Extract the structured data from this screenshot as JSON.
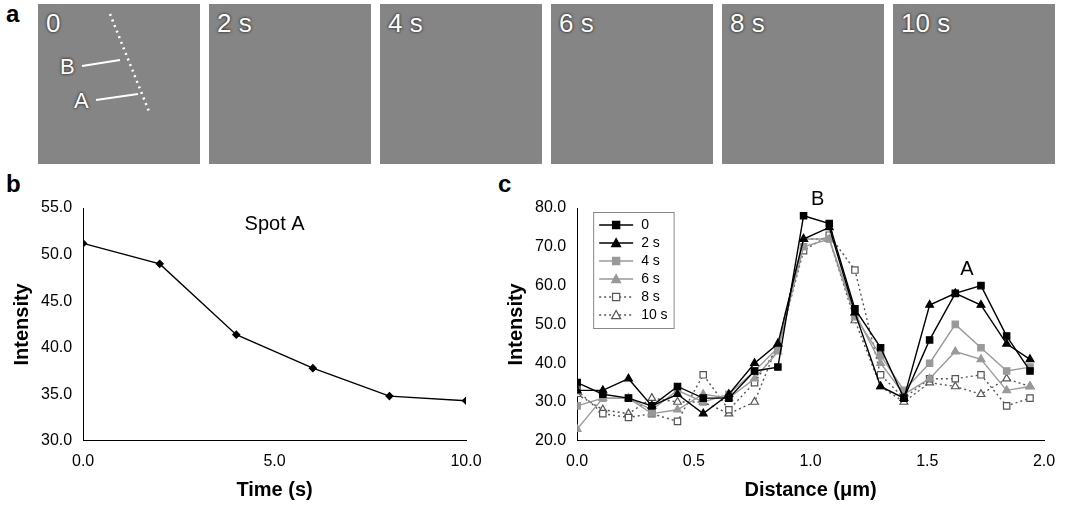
{
  "panel_a": {
    "panel_label": "a",
    "frames": [
      "0",
      "2 s",
      "4 s",
      "6 s",
      "8 s",
      "10 s"
    ],
    "spot_labels": [
      "B",
      "A"
    ]
  },
  "chart_data": [
    {
      "panel_label": "b",
      "type": "line",
      "title": "Spot A",
      "x_label": "Time (s)",
      "y_label": "Intensity",
      "x": [
        0,
        2,
        4,
        6,
        8,
        10
      ],
      "values": [
        51.2,
        49.0,
        41.4,
        37.8,
        34.8,
        34.3
      ],
      "color": "#000000",
      "marker": "diamond",
      "line_style": "solid",
      "xlim": [
        0,
        10
      ],
      "xticks": [
        {
          "value": 0,
          "label": "0.0"
        },
        {
          "value": 5,
          "label": "5.0"
        },
        {
          "value": 10,
          "label": "10.0"
        }
      ],
      "ylim": [
        30,
        55
      ],
      "yticks": [
        {
          "value": 30,
          "label": "30.0"
        },
        {
          "value": 35,
          "label": "35.0"
        },
        {
          "value": 40,
          "label": "40.0"
        },
        {
          "value": 45,
          "label": "45.0"
        },
        {
          "value": 50,
          "label": "50.0"
        },
        {
          "value": 55,
          "label": "55.0"
        }
      ],
      "grid": false
    },
    {
      "panel_label": "c",
      "type": "line",
      "x_label": "Distance (μm)",
      "y_label": "Intensity",
      "x": [
        0,
        0.11,
        0.22,
        0.32,
        0.43,
        0.54,
        0.65,
        0.76,
        0.86,
        0.97,
        1.08,
        1.19,
        1.3,
        1.4,
        1.51,
        1.62,
        1.73,
        1.84,
        1.94
      ],
      "series": [
        {
          "name": "0",
          "color": "#000000",
          "marker": "square",
          "line_style": "solid",
          "values": [
            35,
            32,
            31,
            29,
            34,
            31,
            31,
            38,
            39,
            78,
            76,
            54,
            44,
            31,
            46,
            58,
            60,
            47,
            38
          ]
        },
        {
          "name": "2 s",
          "color": "#000000",
          "marker": "triangle",
          "line_style": "solid",
          "values": [
            33,
            33,
            36,
            29,
            32,
            27,
            32,
            40,
            45,
            72,
            75,
            53,
            34,
            31,
            55,
            58,
            55,
            45,
            41
          ]
        },
        {
          "name": "4 s",
          "color": "#999999",
          "marker": "square",
          "line_style": "solid",
          "values": [
            29,
            31,
            31,
            28,
            33,
            30,
            32,
            38,
            44,
            70,
            72,
            52,
            42,
            33,
            40,
            50,
            44,
            38,
            39
          ]
        },
        {
          "name": "6 s",
          "color": "#999999",
          "marker": "triangle",
          "line_style": "solid",
          "values": [
            23,
            31,
            31,
            27,
            28,
            32,
            31,
            36,
            43,
            72,
            72,
            53,
            40,
            32,
            36,
            43,
            41,
            33,
            34
          ]
        },
        {
          "name": "8 s",
          "color": "#555555",
          "marker": "open_square",
          "line_style": "dotted",
          "values": [
            33,
            27,
            26,
            27,
            25,
            37,
            28,
            35,
            44,
            69,
            73,
            64,
            37,
            31,
            36,
            36,
            37,
            29,
            31
          ]
        },
        {
          "name": "10 s",
          "color": "#555555",
          "marker": "open_triangle",
          "line_style": "dotted",
          "values": [
            32,
            28,
            27,
            31,
            30,
            30,
            27,
            30,
            45,
            72,
            72,
            51,
            34,
            30,
            35,
            34,
            32,
            36,
            34
          ]
        }
      ],
      "xlim": [
        0,
        2
      ],
      "xticks": [
        {
          "value": 0,
          "label": "0.0"
        },
        {
          "value": 0.5,
          "label": "0.5"
        },
        {
          "value": 1,
          "label": "1.0"
        },
        {
          "value": 1.5,
          "label": "1.5"
        },
        {
          "value": 2,
          "label": "2.0"
        }
      ],
      "ylim": [
        20,
        80
      ],
      "yticks": [
        {
          "value": 20,
          "label": "20.0"
        },
        {
          "value": 30,
          "label": "30.0"
        },
        {
          "value": 40,
          "label": "40.0"
        },
        {
          "value": 50,
          "label": "50.0"
        },
        {
          "value": 60,
          "label": "60.0"
        },
        {
          "value": 70,
          "label": "70.0"
        },
        {
          "value": 80,
          "label": "80.0"
        }
      ],
      "annotations": [
        {
          "text": "B",
          "x": 1.03,
          "y": 79
        },
        {
          "text": "A",
          "x": 1.67,
          "y": 61
        }
      ],
      "legend": "upper left",
      "grid": false
    }
  ]
}
